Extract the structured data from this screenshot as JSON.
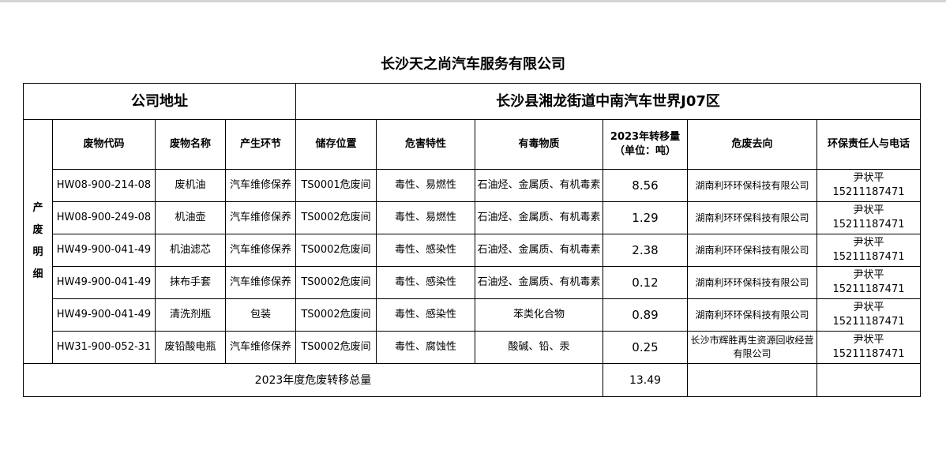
{
  "title": "长沙天之尚汽车服务有限公司",
  "address_label": "公司地址",
  "address_value": "长沙县湘龙街道中南汽车世界J07区",
  "side_label": "产废明细",
  "headers": [
    "废物代码",
    "废物名称",
    "产生环节",
    "储存位置",
    "危害特性",
    "有毒物质",
    "2023年转移量\n（单位：吨）",
    "危废去向",
    "环保责任人与电话"
  ],
  "header_qty_line1": "2023年转移量",
  "header_qty_line2": "（单位：吨）",
  "rows": [
    {
      "code": "HW08-900-214-08",
      "name": "废机油",
      "stage": "汽车维修保养",
      "storage": "TS0001危废间",
      "hazard": "毒性、易燃性",
      "toxic": "石油烃、金属质、有机毒素",
      "qty": "8.56",
      "dest": "湖南利环环保科技有限公司",
      "person": "尹状平",
      "phone": "15211187471"
    },
    {
      "code": "HW08-900-249-08",
      "name": "机油壶",
      "stage": "汽车维修保养",
      "storage": "TS0002危废间",
      "hazard": "毒性、易燃性",
      "toxic": "石油烃、金属质、有机毒素",
      "qty": "1.29",
      "dest": "湖南利环环保科技有限公司",
      "person": "尹状平",
      "phone": "15211187471"
    },
    {
      "code": "HW49-900-041-49",
      "name": "机油滤芯",
      "stage": "汽车维修保养",
      "storage": "TS0002危废间",
      "hazard": "毒性、感染性",
      "toxic": "石油烃、金属质、有机毒素",
      "qty": "2.38",
      "dest": "湖南利环环保科技有限公司",
      "person": "尹状平",
      "phone": "15211187471"
    },
    {
      "code": "HW49-900-041-49",
      "name": "抹布手套",
      "stage": "汽车维修保养",
      "storage": "TS0002危废间",
      "hazard": "毒性、感染性",
      "toxic": "石油烃、金属质、有机毒素",
      "qty": "0.12",
      "dest": "湖南利环环保科技有限公司",
      "person": "尹状平",
      "phone": "15211187471"
    },
    {
      "code": "HW49-900-041-49",
      "name": "清洗剂瓶",
      "stage": "包装",
      "storage": "TS0002危废间",
      "hazard": "毒性、感染性",
      "toxic": "苯类化合物",
      "qty": "0.89",
      "dest": "湖南利环环保科技有限公司",
      "person": "尹状平",
      "phone": "15211187471"
    },
    {
      "code": "HW31-900-052-31",
      "name": "废铅酸电瓶",
      "stage": "汽车维修保养",
      "storage": "TS0002危废间",
      "hazard": "毒性、腐蚀性",
      "toxic": "酸碱、铅、汞",
      "qty": "0.25",
      "dest": "长沙市辉胜再生资源回收经营有限公司",
      "person": "尹状平",
      "phone": "15211187471"
    }
  ],
  "total_label": "2023年度危废转移总量",
  "total_value": "13.49"
}
